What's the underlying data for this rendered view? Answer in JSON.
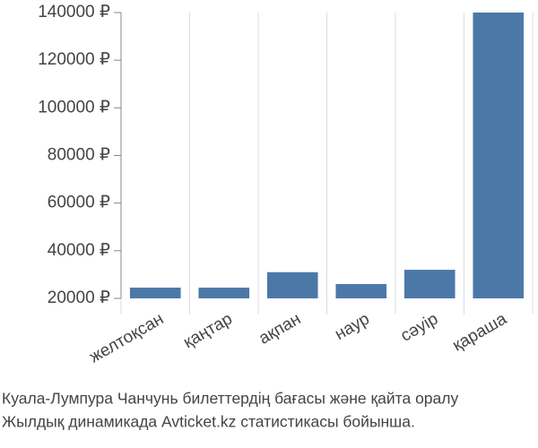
{
  "chart_data": {
    "type": "bar",
    "categories": [
      "желтоқсан",
      "қаңтар",
      "ақпан",
      "наур",
      "сәуір",
      "қараша"
    ],
    "values": [
      24500,
      24500,
      31000,
      26000,
      32000,
      140000
    ],
    "color": "#4c78a8",
    "ylim": [
      20000,
      140000
    ],
    "yticks": [
      {
        "value": 20000,
        "label": "20000 ₽"
      },
      {
        "value": 40000,
        "label": "40000 ₽"
      },
      {
        "value": 60000,
        "label": "60000 ₽"
      },
      {
        "value": 80000,
        "label": "80000 ₽"
      },
      {
        "value": 100000,
        "label": "100000 ₽"
      },
      {
        "value": 120000,
        "label": "120000 ₽"
      },
      {
        "value": 140000,
        "label": "140000 ₽"
      }
    ],
    "caption": [
      "Куала-Лумпура Чанчунь билеттердің бағасы және қайта оралу",
      "Жылдық динамикада Avticket.kz статистикасы бойынша."
    ]
  }
}
